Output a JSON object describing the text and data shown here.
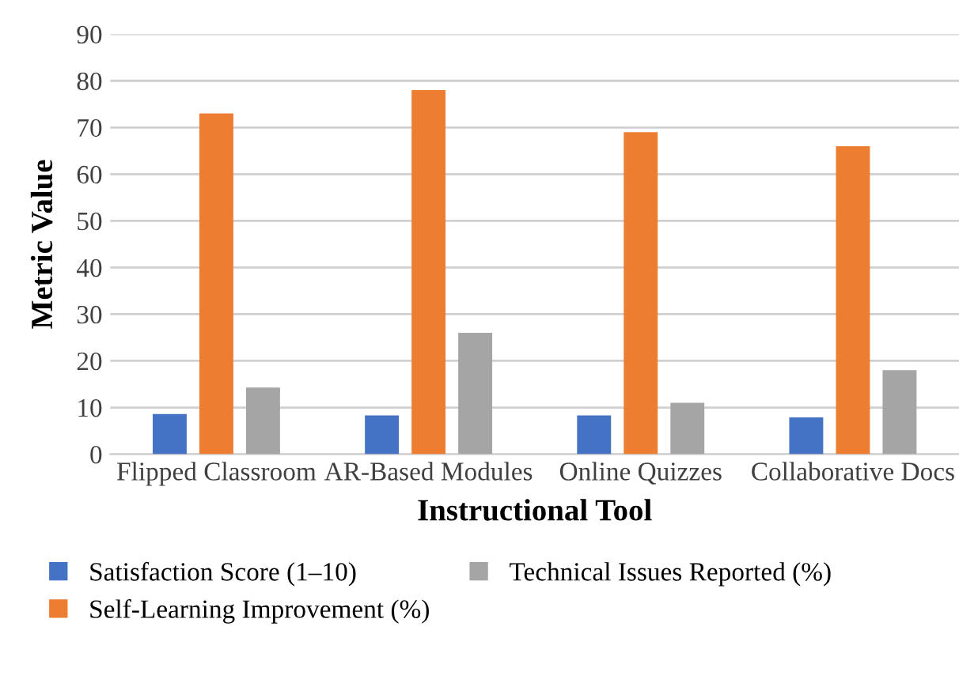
{
  "chart_data": {
    "type": "bar",
    "xlabel": "Instructional Tool",
    "ylabel": "Metric Value",
    "categories": [
      "Flipped Classroom",
      "AR-Based Modules",
      "Online Quizzes",
      "Collaborative Docs"
    ],
    "series": [
      {
        "name": "Satisfaction Score (1–10)",
        "color": "#4472c4",
        "values": [
          8.6,
          8.3,
          8.3,
          7.9
        ]
      },
      {
        "name": "Self-Learning Improvement (%)",
        "color": "#ed7d31",
        "values": [
          73,
          78,
          69,
          66
        ]
      },
      {
        "name": "Technical Issues Reported (%)",
        "color": "#a5a5a5",
        "values": [
          14.3,
          26,
          11,
          18
        ]
      }
    ],
    "ylim": [
      0,
      90
    ],
    "yticks": [
      0,
      10,
      20,
      30,
      40,
      50,
      60,
      70,
      80,
      90
    ],
    "grid": "y",
    "legend": "bottom"
  }
}
